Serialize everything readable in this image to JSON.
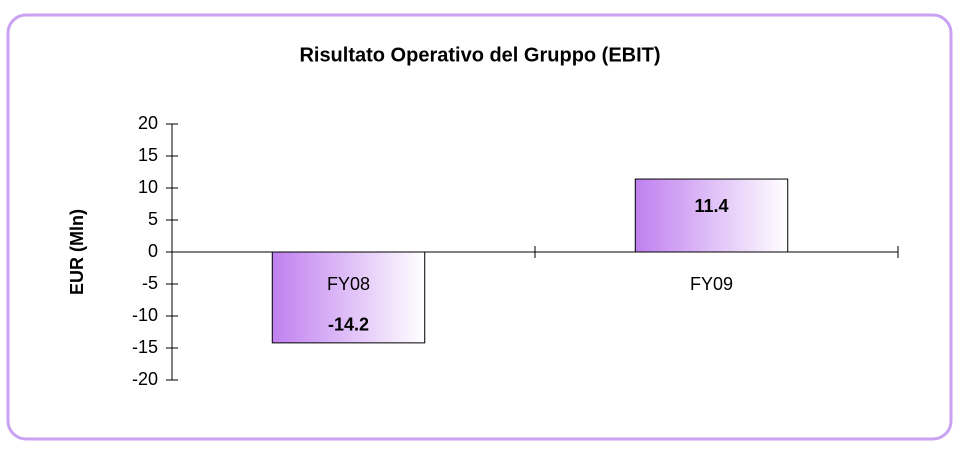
{
  "chart_data": {
    "type": "bar",
    "title": "Risultato Operativo del Gruppo (EBIT)",
    "y_label": "EUR (Mln)",
    "categories": [
      "FY08",
      "FY09"
    ],
    "values": [
      -14.2,
      11.4
    ],
    "color": "#c080f0",
    "ylim": [
      -20,
      20
    ],
    "yticks": [
      -20,
      -15,
      -10,
      -5,
      0,
      5,
      10,
      15,
      20
    ],
    "grid": false
  }
}
